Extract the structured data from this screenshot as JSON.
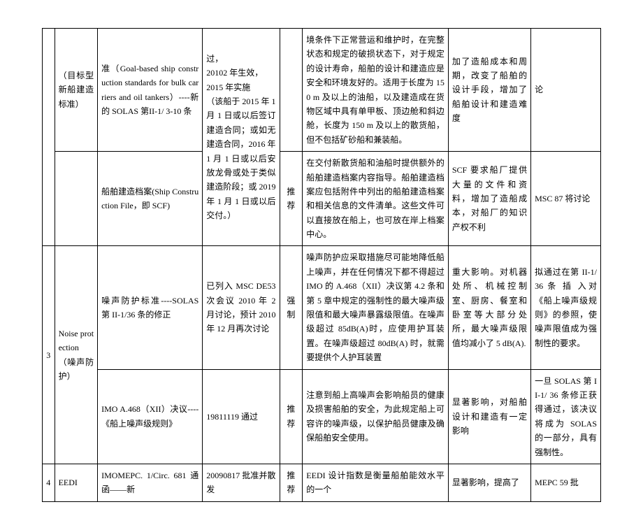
{
  "rows": {
    "r1": {
      "cat": "（目标型新船建造标准）",
      "std": "准（Goal-based ship construction standards for bulk carriers and oil tankers）----新的 SOLAS 第II-1/ 3-10 条",
      "date": "过，\n20102 年生效，\n2015 年实施\n（该船于 2015 年 1 月 1 日或以后签订建造合同；或如无建造合同，2016 年 1 月 1 日或以后安放龙骨或处于类似建造阶段；或 2019 年 1 月 1 日或以后交付。）",
      "type_a": "",
      "desc": "境条件下正常营运和维护时，在完整状态和规定的破损状态下，对于规定的设计寿命，船舶的设计和建造应是安全和环境友好的。适用于长度为 150 m 及以上的油船，以及建造成在货物区域中具有单甲板、顶边舱和斜边舱，长度为 150 m 及以上的散货船，但不包括矿砂船和兼装船。",
      "imp": "加了造船成本和周期，改变了船舶的设计手段，增加了船舶设计和建造难度",
      "note": "论"
    },
    "r2": {
      "std": "船舶建造档案(Ship Construction File，即 SCF)",
      "type": "推荐",
      "desc": "在交付新散货船和油船时提供额外的船舶建造档案内容指导。船舶建造档案应包括附件中列出的船舶建造档案和相关信息的文件清单。这些文件可以直接放在船上，也可放在岸上档案中心。",
      "imp": "SCF 要求船厂提供大量的文件和资料，增加了造船成本，对船厂的知识产权不利",
      "note": "MSC 87 将讨论"
    },
    "r3": {
      "idx": "3",
      "cat": "Noise protection（噪声防护）",
      "std": "噪声防护标准----SOLAS 第 II-1/36 条的修正",
      "date": "已列入 MSC DE53 次会议 2010 年 2 月讨论，预计 2010 年 12 月再次讨论",
      "type": "强制",
      "desc": "噪声防护应采取措施尽可能地降低船上噪声，并在任何情况下都不得超过 IMO 的 A.468（XII）决议第 4.2 条和第 5 章中规定的强制性的最大噪声级限值和最大噪声暴露级限值。在噪声级超过 85dB(A)时，应使用护耳装置。在噪声级超过 80dB(A) 时，就需要提供个人护耳装置",
      "imp": "重大影响。对机器处所、机械控制室、厨房、餐室和卧室等大部分处所，最大噪声级限值均减小了 5 dB(A).",
      "note": "拟通过在第 II-1/36 条 插 入对《船上噪声级规则》的参照，使噪声限值成为强制性的要求。"
    },
    "r4": {
      "std": "IMO A.468（XII）决议----《船上噪声级规则》",
      "date": "19811119 通过",
      "type": "推荐",
      "desc": "注意到船上高噪声会影响船员的健康及损害船舶的安全，为此规定船上可容许的噪声级，以保护船员健康及确保船舶安全使用。",
      "imp": "显著影响，对船舶设计和建造有一定影响",
      "note": "一旦 SOLAS 第 II-1/ 36 条修正获得通过，该决议将成为 SOLAS 的一部分，具有强制性。"
    },
    "r5": {
      "idx": "4",
      "cat": "EEDI",
      "std": "IMOMEPC. 1/Circ. 681 通函——新",
      "date": "20090817 批准并散发",
      "type": "推荐",
      "desc": "EEDI 设计指数是衡量船舶能效水平的一个",
      "imp": "显著影响，提高了",
      "note": "MEPC 59 批"
    }
  }
}
